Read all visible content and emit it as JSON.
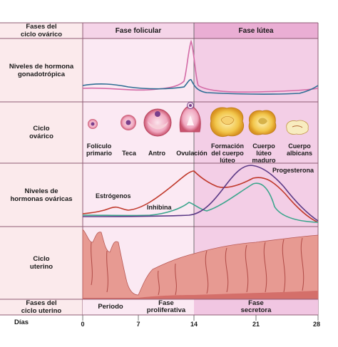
{
  "row_labels": {
    "ovarian_phases": [
      "Fases del",
      "ciclo ovárico"
    ],
    "gonadotropic": [
      "Niveles de hormona",
      "gonadotrópica"
    ],
    "ovarian_cycle": [
      "Ciclo",
      "ovárico"
    ],
    "ovarian_hormones": [
      "Niveles de",
      "hormonas ováricas"
    ],
    "uterine_cycle": [
      "Ciclo",
      "uterino"
    ],
    "uterine_phases": [
      "Fases del",
      "ciclo uterino"
    ],
    "days": "Días"
  },
  "ovarian_phases": {
    "follicular": "Fase   folicular",
    "luteal": "Fase   lútea"
  },
  "stages": {
    "primary_follicle": [
      "Folículo",
      "primario"
    ],
    "theca": "Teca",
    "antrum": "Antro",
    "ovulation": "Ovulación",
    "corpus_luteum_formation": [
      "Formación",
      "del cuerpo",
      "lúteo"
    ],
    "mature_corpus_luteum": [
      "Cuerpo",
      "lúteo",
      "maduro"
    ],
    "corpus_albicans": [
      "Cuerpo",
      "albicans"
    ]
  },
  "hormones": {
    "estrogen": "Estrógenos",
    "inhibin": "Inhibina",
    "progesterone": "Progesterona"
  },
  "uterine_phases": {
    "menses": "Periodo",
    "proliferative": [
      "Fase",
      "proliferativa"
    ],
    "secretory": [
      "Fase",
      "secretora"
    ]
  },
  "day_ticks": [
    "0",
    "7",
    "14",
    "21",
    "28"
  ],
  "colors": {
    "label_bg": "#fbeaec",
    "follicular_bg": "#fbe9f3",
    "luteal_bg": "#f1c6e2",
    "lh_curve": "#d36aa6",
    "fsh_curve": "#2e6e94",
    "estrogen_curve": "#c0392b",
    "inhibin_curve": "#3aa58c",
    "progesterone_curve": "#5b3a86",
    "tissue": "#e79a92"
  }
}
